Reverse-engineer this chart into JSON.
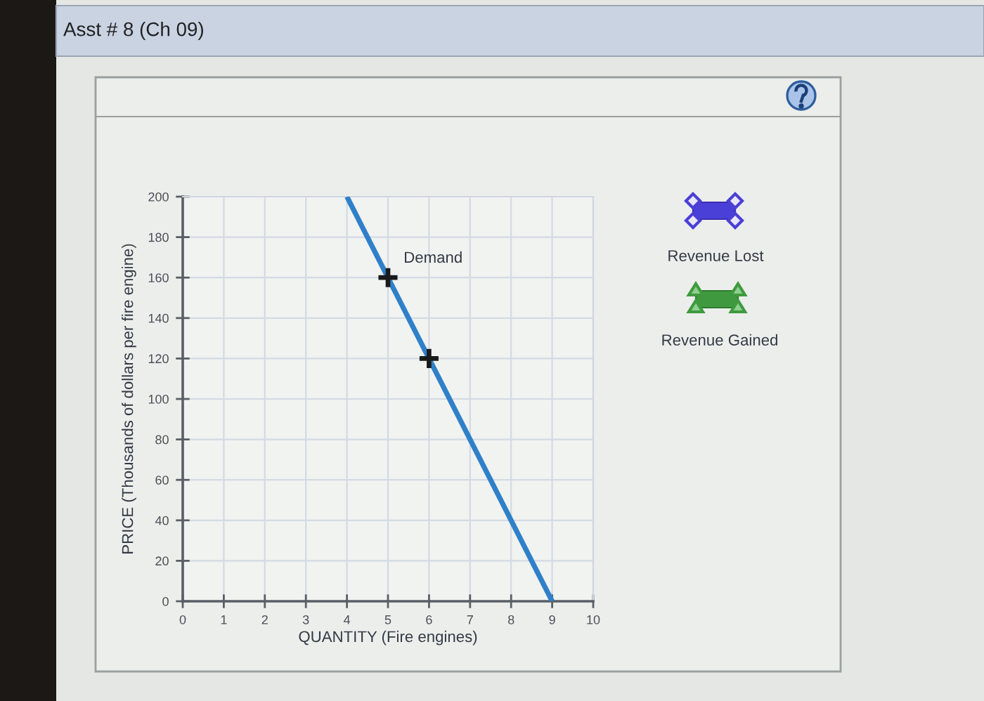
{
  "chart_data": {
    "type": "line",
    "title": "Asst # 8 (Ch 09)",
    "xlabel": "QUANTITY (Fire engines)",
    "ylabel": "PRICE (Thousands of dollars per fire engine)",
    "xlim": [
      0,
      10
    ],
    "ylim": [
      0,
      200
    ],
    "xticks": [
      0,
      1,
      2,
      3,
      4,
      5,
      6,
      7,
      8,
      9,
      10
    ],
    "yticks": [
      0,
      20,
      40,
      60,
      80,
      100,
      120,
      140,
      160,
      180,
      200
    ],
    "grid": true,
    "series": [
      {
        "name": "Demand",
        "color": "#2f80c8",
        "x": [
          4,
          9
        ],
        "values": [
          200,
          0
        ],
        "line_style": "solid"
      },
      {
        "type": "scatter",
        "color": "#1a1a1a",
        "x": [
          5,
          6
        ],
        "values": [
          160,
          120
        ],
        "marker": "cross"
      }
    ],
    "annotations": [
      "Revenue Lost",
      "Revenue Gained"
    ]
  }
}
